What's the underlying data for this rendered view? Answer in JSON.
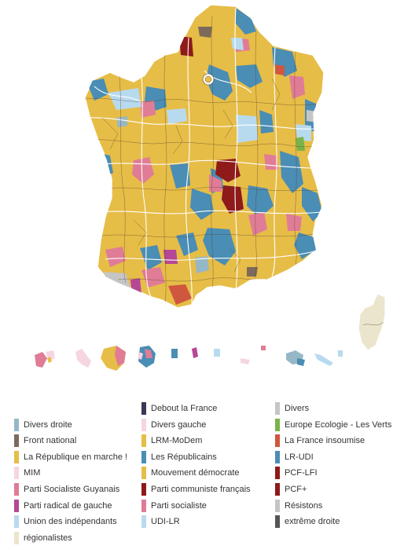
{
  "map": {
    "colors": {
      "lrm": "#e6bd47",
      "lr": "#4a8db5",
      "ps": "#e07c96",
      "divers_droite": "#96b7c6",
      "udi": "#b8daef",
      "pcf": "#8e1a1a",
      "fn": "#7d6a5b",
      "dlf": "#3c3755",
      "divers": "#c5c5c5",
      "regionalistes": "#ebe5cd",
      "europe_ecologie": "#79b34a",
      "fi": "#cf573e",
      "prg": "#b54796",
      "border_region": "#ffffff",
      "border_circ": "#55402a"
    }
  },
  "legend": {
    "items": [
      {
        "label": "Debout la France",
        "color": "#3c3755",
        "name": "legend-debout-la-france"
      },
      {
        "label": "Divers",
        "color": "#c5c5c5",
        "name": "legend-divers"
      },
      {
        "label": "Divers droite",
        "color": "#96b7c6",
        "name": "legend-divers-droite"
      },
      {
        "label": "Divers gauche",
        "color": "#f6d5e3",
        "name": "legend-divers-gauche"
      },
      {
        "label": "Europe Ecologie - Les Verts",
        "color": "#79b34a",
        "name": "legend-europe-ecologie"
      },
      {
        "label": "Front national",
        "color": "#7d6a5b",
        "name": "legend-front-national"
      },
      {
        "label": "LRM-MoDem",
        "color": "#e6bd47",
        "name": "legend-lrm-modem"
      },
      {
        "label": "La France insoumise",
        "color": "#cf573e",
        "name": "legend-france-insoumise"
      },
      {
        "label": "La République en marche !",
        "color": "#e6bd47",
        "name": "legend-republique-en-marche"
      },
      {
        "label": "Les Républicains",
        "color": "#4a8db5",
        "name": "legend-les-republicains"
      },
      {
        "label": "LR-UDI",
        "color": "#4a8db5",
        "name": "legend-lr-udi"
      },
      {
        "label": "MIM",
        "color": "#f6d5e3",
        "name": "legend-mim"
      },
      {
        "label": "Mouvement démocrate",
        "color": "#e6bd47",
        "name": "legend-mouvement-democrate"
      },
      {
        "label": "PCF-LFI",
        "color": "#8e1a1a",
        "name": "legend-pcf-lfi"
      },
      {
        "label": "Parti Socialiste Guyanais",
        "color": "#e07c96",
        "name": "legend-ps-guyanais"
      },
      {
        "label": "Parti communiste français",
        "color": "#8e1a1a",
        "name": "legend-pcf"
      },
      {
        "label": "PCF+",
        "color": "#8e1a1a",
        "name": "legend-pcf-plus"
      },
      {
        "label": "Parti radical de gauche",
        "color": "#b54796",
        "name": "legend-prg"
      },
      {
        "label": "Parti socialiste",
        "color": "#e07c96",
        "name": "legend-parti-socialiste"
      },
      {
        "label": "Résistons",
        "color": "#c5c5c5",
        "name": "legend-resistons"
      },
      {
        "label": "Union des indépendants",
        "color": "#b8daef",
        "name": "legend-union-independants"
      },
      {
        "label": "UDI-LR",
        "color": "#b8daef",
        "name": "legend-udi-lr"
      },
      {
        "label": "extrême droite",
        "color": "#555555",
        "name": "legend-extreme-droite"
      },
      {
        "label": "régionalistes",
        "color": "#ebe5cd",
        "name": "legend-regionalistes"
      }
    ]
  }
}
